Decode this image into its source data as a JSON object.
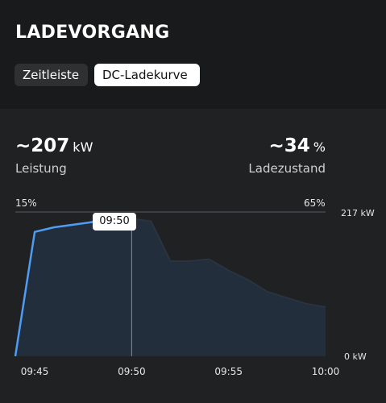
{
  "header": {
    "title": "LADEVORGANG",
    "tabs": [
      {
        "label": "Zeitleiste",
        "active": false
      },
      {
        "label": "DC-Ladekurve",
        "active": true
      }
    ]
  },
  "stats": {
    "power": {
      "value": "~207",
      "unit": "kW",
      "label": "Leistung"
    },
    "soc": {
      "value": "~34",
      "unit": "%",
      "label": "Ladezustand"
    }
  },
  "chart": {
    "soc_start": "15%",
    "soc_end": "65%",
    "y_max_label": "217 kW",
    "y_min_label": "0 kW",
    "tooltip": "09:50"
  },
  "colors": {
    "background": "#202122",
    "header_background": "#191a1b",
    "line_active": "#4f9cf5",
    "line_inactive": "#2a3340",
    "area_fill": "#22303f"
  },
  "chart_data": {
    "type": "area",
    "x": [
      "09:44",
      "09:45",
      "09:46",
      "09:47",
      "09:48",
      "09:49",
      "09:50",
      "09:51",
      "09:52",
      "09:53",
      "09:54",
      "09:55",
      "09:56",
      "09:57",
      "09:58",
      "09:59",
      "10:00"
    ],
    "series": [
      {
        "values": [
          0,
          187,
          194,
          198,
          202,
          205,
          207,
          203,
          143,
          143,
          146,
          129,
          115,
          97,
          88,
          79,
          74
        ]
      }
    ],
    "ylim": [
      0,
      217
    ],
    "xticks": [
      "09:45",
      "09:50",
      "09:55",
      "10:00"
    ],
    "cursor_time": "09:50",
    "yaxis_labels": [
      "217 kW",
      "0 kW"
    ]
  }
}
